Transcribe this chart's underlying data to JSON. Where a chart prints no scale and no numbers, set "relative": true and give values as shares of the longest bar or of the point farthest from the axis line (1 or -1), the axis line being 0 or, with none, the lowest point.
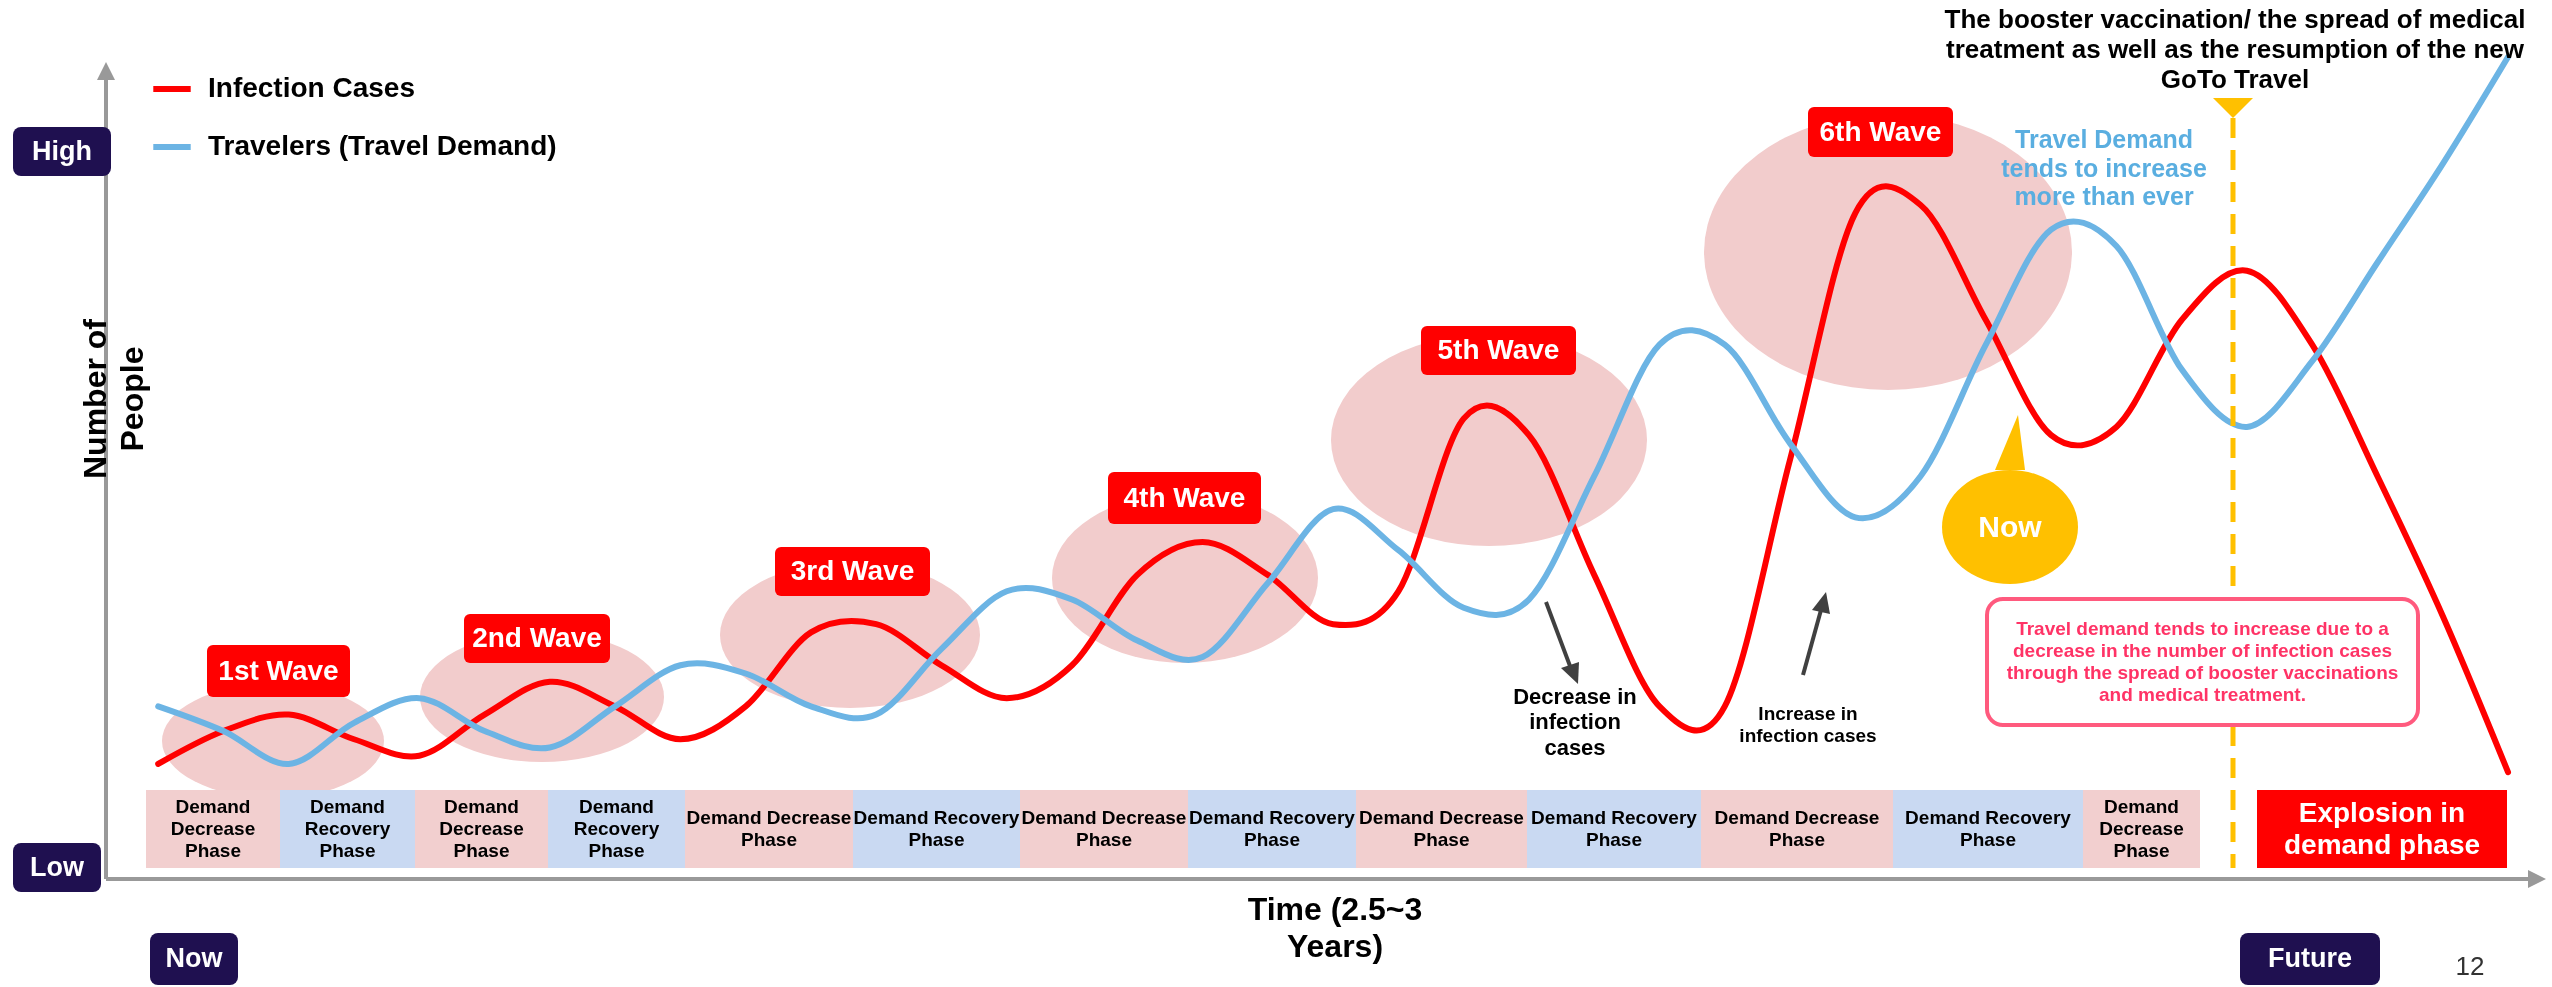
{
  "chart_data": {
    "type": "line",
    "relative": true,
    "xlabel": "Time (2.5~3 Years)",
    "ylabel": "Number of People",
    "legend": "top left",
    "marker": "none",
    "line_style": "solid",
    "categories": [
      null,
      null,
      null,
      null,
      null,
      null,
      null,
      null,
      null,
      null,
      null,
      null,
      null,
      null,
      null,
      null,
      null,
      null,
      null,
      null,
      null,
      null,
      null,
      null,
      null,
      null,
      null,
      null,
      null,
      null,
      null,
      null,
      null,
      null,
      null,
      null,
      null
    ],
    "series": [
      {
        "name": "Infection Cases",
        "color": "#ff0000",
        "values": [
          0.14,
          0.18,
          0.2,
          0.17,
          0.15,
          0.2,
          0.24,
          0.21,
          0.17,
          0.21,
          0.3,
          0.31,
          0.26,
          0.22,
          0.26,
          0.37,
          0.41,
          0.37,
          0.31,
          0.35,
          0.56,
          0.54,
          0.37,
          0.21,
          0.21,
          0.51,
          0.81,
          0.82,
          0.68,
          0.54,
          0.55,
          0.68,
          0.74,
          0.65,
          0.49,
          0.32,
          0.13
        ]
      },
      {
        "name": "Travelers (Travel Demand)",
        "color": "#6cb4e4",
        "values": [
          0.21,
          0.18,
          0.14,
          0.19,
          0.22,
          0.18,
          0.16,
          0.21,
          0.26,
          0.25,
          0.21,
          0.2,
          0.28,
          0.35,
          0.34,
          0.29,
          0.27,
          0.36,
          0.45,
          0.4,
          0.33,
          0.34,
          0.49,
          0.65,
          0.65,
          0.53,
          0.44,
          0.49,
          0.65,
          0.79,
          0.77,
          0.62,
          0.55,
          0.63,
          0.75,
          0.87,
          1
        ]
      }
    ],
    "annotations": [
      "High",
      "Low",
      "Now",
      "Future",
      "1st Wave",
      "2nd Wave",
      "3rd  Wave",
      "4th  Wave",
      "5th  Wave",
      "6th  Wave",
      "Demand Decrease Phase",
      "Demand Recovery Phase",
      "Demand Decrease Phase",
      "Demand Recovery Phase",
      "Demand Decrease Phase",
      "Demand Recovery Phase",
      "Demand Decrease Phase",
      "Demand Recovery Phase",
      "Demand Decrease Phase",
      "Demand Recovery Phase",
      "Demand Decrease Phase",
      "Demand Recovery Phase",
      "Demand Decrease Phase",
      "Explosion in demand phase",
      "Decrease in infection cases",
      "Increase in infection cases",
      "Now",
      "The booster vaccination/ the spread of medical treatment as well as the resumption of the new GoTo Travel",
      "Travel Demand tends to increase more than ever",
      "Travel demand tends to increase due to a decrease in the number of infection cases through the spread of booster vaccinations and medical treatment.",
      "12"
    ]
  }
}
